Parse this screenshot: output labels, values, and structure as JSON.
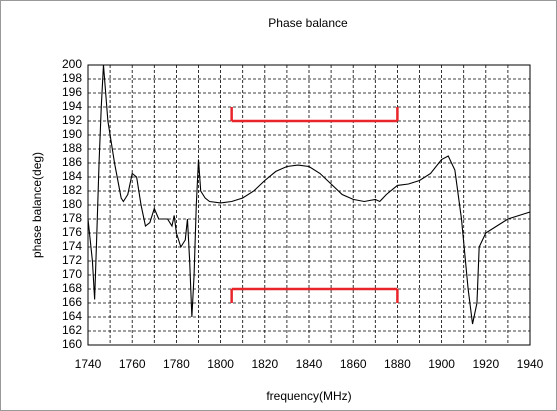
{
  "chart_data": {
    "type": "line",
    "title": "Phase balance",
    "xlabel": "frequency(MHz)",
    "ylabel": "phase balance(deg)",
    "x": [
      1740,
      1741,
      1742,
      1743,
      1744,
      1745,
      1746,
      1747,
      1749,
      1752,
      1755,
      1756,
      1758,
      1760,
      1762,
      1764,
      1766,
      1768,
      1770,
      1772,
      1774,
      1776,
      1778,
      1779,
      1780,
      1782,
      1784,
      1785,
      1786,
      1787,
      1788,
      1789,
      1790,
      1791,
      1793,
      1795,
      1800,
      1805,
      1810,
      1815,
      1820,
      1825,
      1830,
      1835,
      1840,
      1845,
      1850,
      1855,
      1860,
      1865,
      1870,
      1872,
      1875,
      1880,
      1885,
      1890,
      1895,
      1900,
      1903,
      1906,
      1909,
      1912,
      1914,
      1916,
      1917,
      1920,
      1925,
      1930,
      1935,
      1940
    ],
    "series": [
      {
        "name": "phase balance",
        "color": "#000000",
        "values": [
          178,
          175,
          172,
          166.5,
          176,
          186,
          194,
          200,
          192,
          186,
          181,
          180.5,
          181.5,
          184.5,
          184,
          180,
          177,
          177.5,
          179.5,
          178,
          178,
          178,
          177,
          178.5,
          176,
          174,
          175,
          178,
          172,
          164,
          170,
          180,
          186.5,
          182,
          181,
          180.5,
          180.3,
          180.5,
          181,
          182,
          183.5,
          184.8,
          185.5,
          185.7,
          185.5,
          184.5,
          183,
          181.5,
          180.8,
          180.5,
          180.8,
          180.5,
          181.5,
          182.8,
          183,
          183.5,
          184.5,
          186.5,
          187,
          185,
          178,
          168,
          163,
          166,
          174,
          176,
          177,
          178,
          178.5,
          179
        ]
      }
    ],
    "xlim": [
      1740,
      1940
    ],
    "xticks": [
      1740,
      1760,
      1780,
      1800,
      1820,
      1840,
      1860,
      1880,
      1900,
      1920,
      1940
    ],
    "xgrid": [
      1740,
      1750,
      1760,
      1770,
      1780,
      1790,
      1800,
      1810,
      1820,
      1830,
      1840,
      1850,
      1860,
      1870,
      1880,
      1890,
      1900,
      1910,
      1920,
      1930,
      1940
    ],
    "ylim": [
      160,
      200
    ],
    "yticks": [
      160,
      162,
      164,
      166,
      168,
      170,
      172,
      174,
      176,
      178,
      180,
      182,
      184,
      186,
      188,
      190,
      192,
      194,
      196,
      198,
      200
    ],
    "grid": true,
    "limit_color": "#e8262a",
    "limits": [
      {
        "x": [
          1805,
          1880
        ],
        "y": 192,
        "tip": 194
      },
      {
        "x": [
          1805,
          1880
        ],
        "y": 168,
        "tip": 166
      }
    ]
  }
}
